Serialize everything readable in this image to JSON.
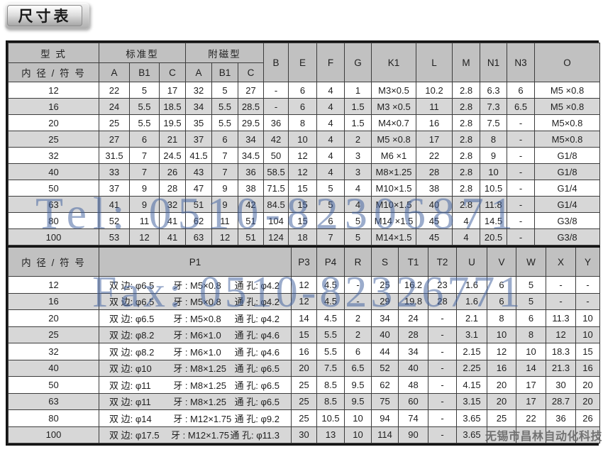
{
  "page_title": "尺寸表",
  "watermarks": {
    "tel": "Tel: 0510-82306871",
    "fax": "Fax: 0510-82326771",
    "company": "无锡市昌林自动化科技",
    "blue_color": "#41619f",
    "gray_color": "#6b6b6b"
  },
  "table1": {
    "header": {
      "type_label": "型 式",
      "bore_label": "内 径 / 符 号",
      "standard_label": "标准型",
      "magnetic_label": "附磁型",
      "sub_cols": [
        "A",
        "B1",
        "C",
        "A",
        "B1",
        "C"
      ],
      "cols": [
        "B",
        "E",
        "F",
        "G",
        "K1",
        "L",
        "M",
        "N1",
        "N3",
        "O"
      ]
    },
    "rows": [
      {
        "bore": "12",
        "cells": [
          "22",
          "5",
          "17",
          "32",
          "5",
          "27",
          "-",
          "6",
          "4",
          "1",
          "M3×0.5",
          "10.2",
          "2.8",
          "6.3",
          "6",
          "M5 ×0.8"
        ]
      },
      {
        "bore": "16",
        "cells": [
          "24",
          "5.5",
          "18.5",
          "34",
          "5.5",
          "28.5",
          "-",
          "6",
          "4",
          "1.5",
          "M3 ×0.5",
          "11",
          "2.8",
          "7.3",
          "6.5",
          "M5 ×0.8"
        ]
      },
      {
        "bore": "20",
        "cells": [
          "25",
          "5.5",
          "19.5",
          "35",
          "5.5",
          "29.5",
          "36",
          "8",
          "4",
          "1.5",
          "M4×0.7",
          "16",
          "2.8",
          "7.5",
          "-",
          "M5×0.8"
        ]
      },
      {
        "bore": "25",
        "cells": [
          "27",
          "6",
          "21",
          "37",
          "6",
          "34",
          "42",
          "10",
          "4",
          "2",
          "M5 ×0.8",
          "17",
          "2.8",
          "8",
          "-",
          "M5×0.8"
        ]
      },
      {
        "bore": "32",
        "cells": [
          "31.5",
          "7",
          "24.5",
          "41.5",
          "7",
          "34.5",
          "50",
          "12",
          "4",
          "3",
          "M6 ×1",
          "22",
          "2.8",
          "9",
          "-",
          "G1/8"
        ]
      },
      {
        "bore": "40",
        "cells": [
          "33",
          "7",
          "26",
          "43",
          "7",
          "36",
          "58.5",
          "12",
          "4",
          "3",
          "M8×1.25",
          "28",
          "2.8",
          "10",
          "-",
          "G1/8"
        ]
      },
      {
        "bore": "50",
        "cells": [
          "37",
          "9",
          "28",
          "47",
          "9",
          "38",
          "71.5",
          "15",
          "5",
          "4",
          "M10×1.5",
          "38",
          "2.8",
          "10.5",
          "-",
          "G1/4"
        ]
      },
      {
        "bore": "63",
        "cells": [
          "41",
          "9",
          "32",
          "51",
          "9",
          "42",
          "84.5",
          "15",
          "5",
          "4",
          "M10×1.5",
          "40",
          "2.8",
          "11.8",
          "-",
          "G1/4"
        ]
      },
      {
        "bore": "80",
        "cells": [
          "52",
          "11",
          "41",
          "62",
          "11",
          "51",
          "104",
          "15",
          "6",
          "5",
          "M14 ×1.5",
          "45",
          "4",
          "14.5",
          "-",
          "G3/8"
        ]
      },
      {
        "bore": "100",
        "cells": [
          "53",
          "12",
          "41",
          "63",
          "12",
          "51",
          "124",
          "18",
          "7",
          "5",
          "M14×1.5",
          "45",
          "4",
          "20.5",
          "-",
          "G3/8"
        ]
      }
    ]
  },
  "table2": {
    "header": {
      "bore_label": "内 径 / 符 号",
      "p1_label": "P1",
      "cols": [
        "P3",
        "P4",
        "R",
        "S",
        "T1",
        "T2",
        "U",
        "V",
        "W",
        "X",
        "Y"
      ]
    },
    "rows": [
      {
        "bore": "12",
        "p1_side": "双 边: φ6.5",
        "p1_thread": "牙 : M5×0.8",
        "p1_hole": "通 孔: φ4.2",
        "cells": [
          "12",
          "4.5",
          "-",
          "25",
          "16.2",
          "23",
          "1.6",
          "6",
          "5",
          "-",
          "-"
        ]
      },
      {
        "bore": "16",
        "p1_side": "双 边: φ6.5",
        "p1_thread": "牙 : M5×0.8",
        "p1_hole": "通 孔: φ4.2",
        "cells": [
          "12",
          "4.5",
          "-",
          "29",
          "19.8",
          "28",
          "1.6",
          "6",
          "5",
          "-",
          "-"
        ]
      },
      {
        "bore": "20",
        "p1_side": "双 边: φ6.5",
        "p1_thread": "牙 : M5×0.8",
        "p1_hole": "通 孔: φ4.2",
        "cells": [
          "14",
          "4.5",
          "2",
          "34",
          "24",
          "-",
          "2.1",
          "8",
          "6",
          "11.3",
          "10"
        ]
      },
      {
        "bore": "25",
        "p1_side": "双 边: φ8.2",
        "p1_thread": "牙 : M6×1.0",
        "p1_hole": "通 孔: φ4.6",
        "cells": [
          "15",
          "5.5",
          "2",
          "40",
          "28",
          "-",
          "3.1",
          "10",
          "8",
          "12",
          "10"
        ]
      },
      {
        "bore": "32",
        "p1_side": "双 边: φ8.2",
        "p1_thread": "牙 : M6×1.0",
        "p1_hole": "通 孔: φ4.6",
        "cells": [
          "16",
          "5.5",
          "6",
          "44",
          "34",
          "-",
          "2.15",
          "12",
          "10",
          "18.3",
          "15"
        ]
      },
      {
        "bore": "40",
        "p1_side": "双 边: φ10",
        "p1_thread": "牙 : M8×1.25",
        "p1_hole": "通 孔: φ6.5",
        "cells": [
          "20",
          "7.5",
          "6.5",
          "52",
          "40",
          "-",
          "2.25",
          "16",
          "14",
          "21.3",
          "16"
        ]
      },
      {
        "bore": "50",
        "p1_side": "双 边: φ11",
        "p1_thread": "牙 : M8×1.25",
        "p1_hole": "通 孔: φ6.5",
        "cells": [
          "25",
          "8.5",
          "9.5",
          "62",
          "48",
          "-",
          "4.15",
          "20",
          "17",
          "30",
          "20"
        ]
      },
      {
        "bore": "63",
        "p1_side": "双 边: φ11",
        "p1_thread": "牙 : M8×1.25",
        "p1_hole": "通 孔: φ6.5",
        "cells": [
          "25",
          "8.5",
          "9.5",
          "75",
          "60",
          "-",
          "3.15",
          "20",
          "17",
          "28.7",
          "20"
        ]
      },
      {
        "bore": "80",
        "p1_side": "双 边: φ14",
        "p1_thread": "牙 : M12×1.75",
        "p1_hole": "通 孔: φ9.2",
        "cells": [
          "25",
          "10.5",
          "10",
          "94",
          "74",
          "-",
          "3.65",
          "25",
          "22",
          "36",
          "26"
        ]
      },
      {
        "bore": "100",
        "p1_side": "双 边: φ17.5",
        "p1_thread": "牙 : M12×1.75",
        "p1_hole": "通 孔: φ11.3",
        "cells": [
          "30",
          "13",
          "10",
          "114",
          "90",
          "-",
          "3.65",
          "",
          "",
          "",
          ""
        ]
      }
    ]
  }
}
